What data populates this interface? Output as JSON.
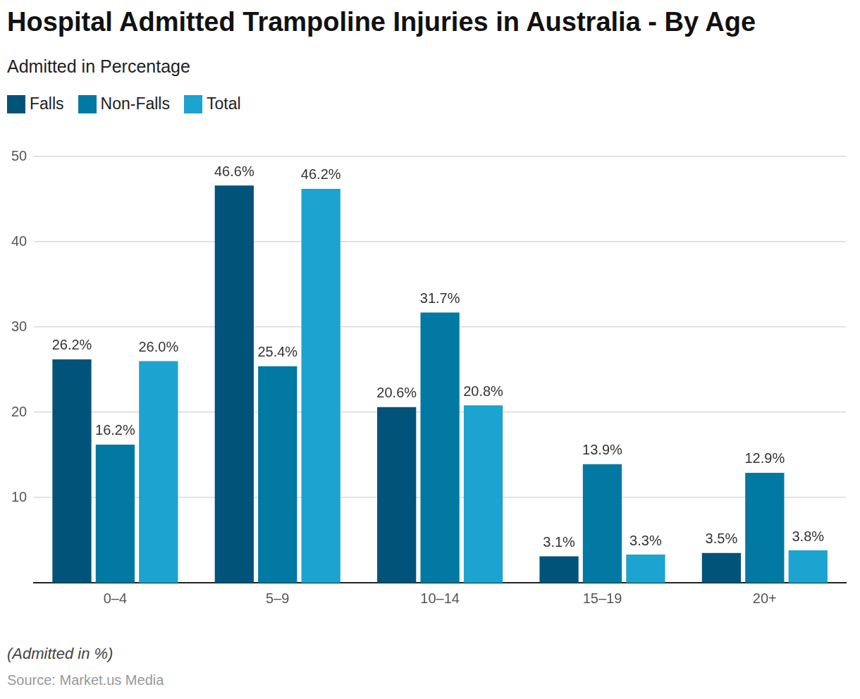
{
  "chart_data": {
    "type": "bar",
    "title": "Hospital Admitted Trampoline Injuries in Australia - By Age",
    "subtitle": "Admitted in Percentage",
    "annotations": [
      "(Admitted in %)",
      "Source: Market.us Media"
    ],
    "categories": [
      "0–4",
      "5–9",
      "10–14",
      "15–19",
      "20+"
    ],
    "series": [
      {
        "name": "Falls",
        "color": "#02537a",
        "values": [
          26.2,
          46.6,
          20.6,
          3.1,
          3.5
        ],
        "value_labels": [
          "26.2%",
          "46.6%",
          "20.6%",
          "3.1%",
          "3.5%"
        ]
      },
      {
        "name": "Non-Falls",
        "color": "#0279a3",
        "values": [
          16.2,
          25.4,
          31.7,
          13.9,
          12.9
        ],
        "value_labels": [
          "16.2%",
          "25.4%",
          "31.7%",
          "13.9%",
          "12.9%"
        ]
      },
      {
        "name": "Total",
        "color": "#1ca3cf",
        "values": [
          26.0,
          46.2,
          20.8,
          3.3,
          3.8
        ],
        "value_labels": [
          "26.0%",
          "46.2%",
          "20.8%",
          "3.3%",
          "3.8%"
        ]
      }
    ],
    "ylim": [
      0,
      50
    ],
    "yticks": [
      10,
      20,
      30,
      40,
      50
    ],
    "grid": true,
    "legend": "top-left",
    "data_labels": true
  }
}
